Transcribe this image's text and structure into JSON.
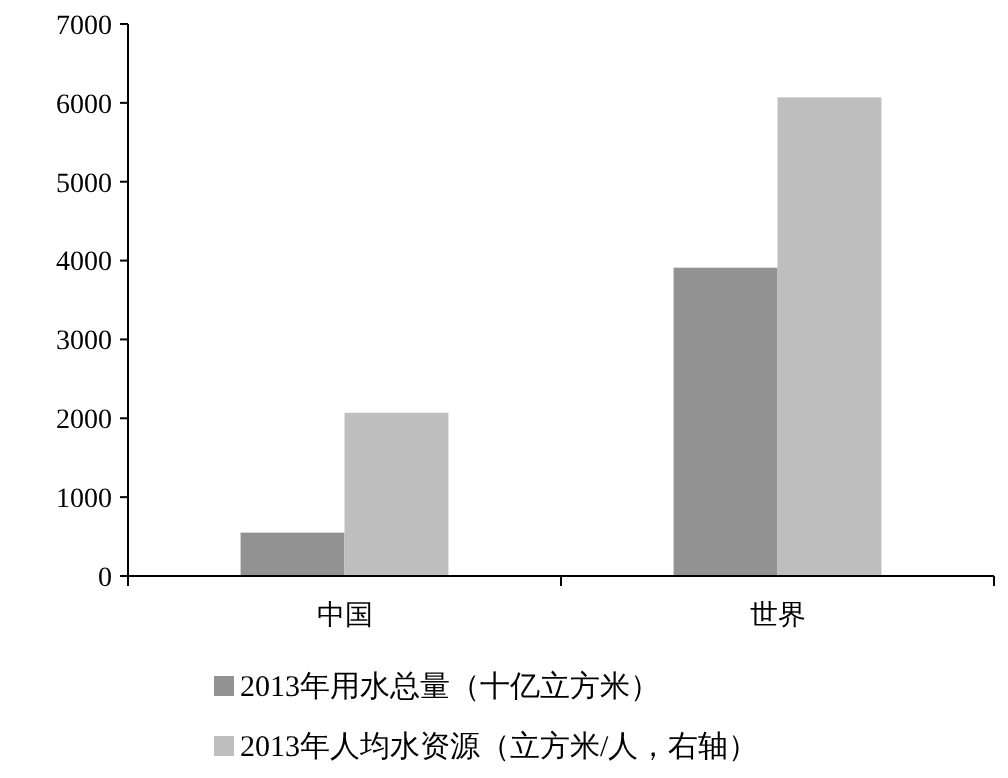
{
  "chart_data": {
    "type": "bar",
    "categories": [
      "中国",
      "世界"
    ],
    "series": [
      {
        "name": "2013年用水总量（十亿立方米）",
        "color": "#929292",
        "values": [
          550,
          3910
        ]
      },
      {
        "name": "2013年人均水资源（立方米/人，右轴）",
        "color": "#bebebe",
        "values": [
          2070,
          6070
        ]
      }
    ],
    "ylim": [
      0,
      7000
    ],
    "yticks": [
      0,
      1000,
      2000,
      3000,
      4000,
      5000,
      6000,
      7000
    ],
    "grid": false,
    "legend": "bottom"
  }
}
